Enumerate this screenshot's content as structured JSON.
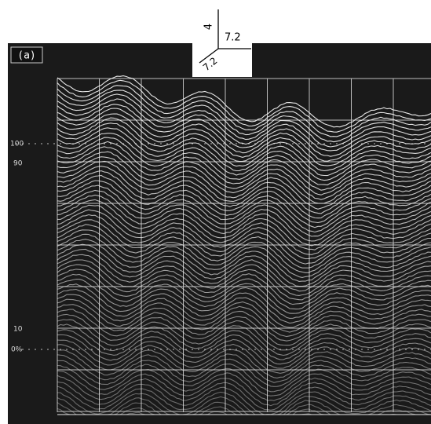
{
  "axis_icon": {
    "vertical_label": "4",
    "horizontal_label": "7.2",
    "diagonal_label": "7.2"
  },
  "panel_label": "(a)",
  "scale_labels": [
    "100",
    "90",
    "10",
    "0%"
  ]
}
